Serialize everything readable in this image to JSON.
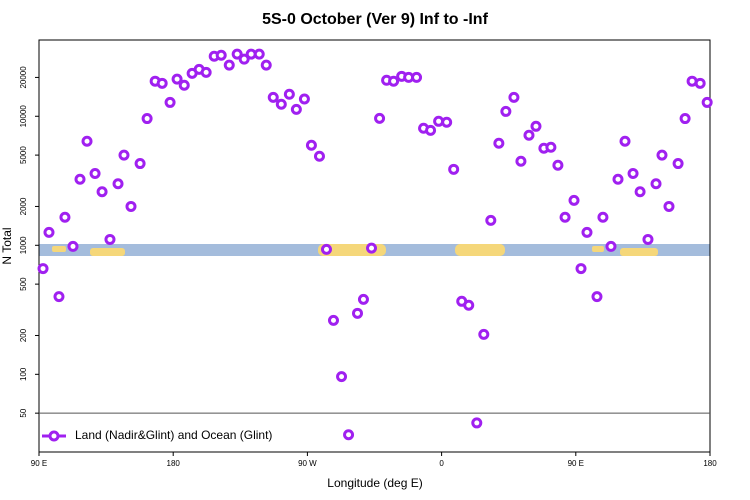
{
  "chart_data": {
    "type": "scatter",
    "title": "5S-0 October (Ver 9)   Inf to -Inf",
    "x_label": "Longitude (deg E)",
    "y_label": "N Total",
    "log_y": true,
    "xlim": [
      90,
      540
    ],
    "ylim": [
      25,
      39000
    ],
    "xticks": [
      {
        "value": 90,
        "label": "90 E"
      },
      {
        "value": 180,
        "label": "180"
      },
      {
        "value": 270,
        "label": "90 W"
      },
      {
        "value": 360,
        "label": "0"
      },
      {
        "value": 450,
        "label": "90 E"
      },
      {
        "value": 540,
        "label": "180"
      }
    ],
    "yticks": [
      50,
      100,
      200,
      500,
      1000,
      2000,
      5000,
      10000,
      20000
    ],
    "reference_line": 50,
    "legend": "bottom-left",
    "series": [
      {
        "name": "Land (Nadir&Glint) and Ocean (Glint)",
        "color": "#a020f0",
        "x": [
          92.7,
          96.7,
          103.4,
          107.4,
          112.8,
          117.5,
          122.2,
          127.6,
          132.3,
          137.6,
          143.0,
          147.0,
          151.7,
          157.8,
          162.5,
          167.9,
          172.6,
          177.9,
          182.6,
          187.4,
          192.7,
          197.4,
          202.1,
          207.5,
          212.2,
          217.6,
          222.9,
          227.6,
          232.3,
          237.7,
          242.4,
          247.1,
          252.5,
          257.9,
          262.6,
          268.0,
          272.7,
          278.1,
          282.8,
          287.5,
          292.9,
          297.6,
          303.6,
          307.6,
          313.0,
          318.4,
          323.1,
          327.8,
          333.2,
          337.9,
          343.2,
          347.9,
          352.6,
          358.0,
          363.4,
          368.1,
          373.5,
          378.2,
          383.6,
          388.3,
          393.0,
          398.4,
          403.1,
          408.5,
          413.2,
          418.6,
          423.3,
          428.6,
          433.3,
          438.0,
          442.8,
          448.8,
          453.5,
          457.5,
          464.2,
          468.2,
          473.6,
          478.3,
          483.0,
          488.4,
          493.1,
          498.4,
          503.8,
          507.8,
          512.5,
          518.6,
          523.3,
          528.0,
          533.4,
          538.1
        ],
        "values": [
          660,
          1260,
          400,
          1650,
          980,
          3250,
          6400,
          3600,
          2600,
          1110,
          3000,
          5000,
          2000,
          4300,
          9600,
          18700,
          18000,
          12800,
          19400,
          17400,
          21500,
          23100,
          21900,
          29200,
          29700,
          24900,
          30300,
          27700,
          30300,
          30300,
          24900,
          14000,
          12400,
          14800,
          11300,
          13600,
          5960,
          4900,
          930,
          262,
          96,
          34,
          297,
          381,
          950,
          9630,
          19000,
          18700,
          20400,
          20000,
          20000,
          8070,
          7780,
          9140,
          8980,
          3880,
          368,
          343,
          42,
          204,
          1560,
          6180,
          10900,
          14000,
          4480,
          7130,
          8360,
          5650,
          5750,
          4170,
          1650,
          2230,
          660,
          1260,
          400,
          1650,
          980,
          3250,
          6400,
          3600,
          2600,
          1110,
          3000,
          5000,
          2000,
          4300,
          9600,
          18700,
          18000,
          12800
        ]
      }
    ]
  }
}
